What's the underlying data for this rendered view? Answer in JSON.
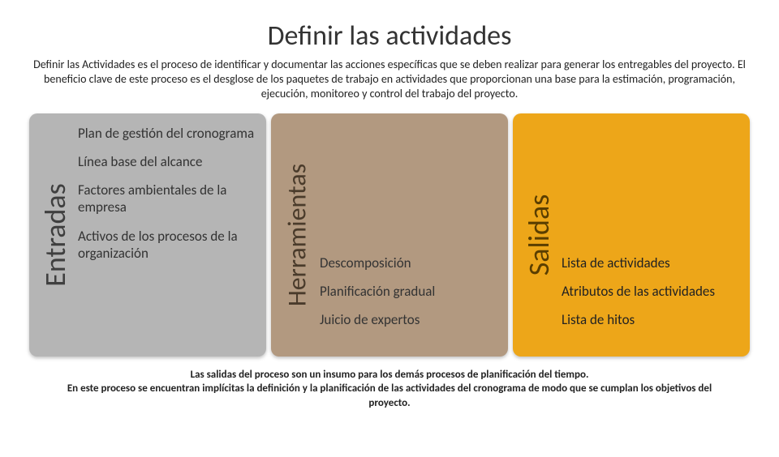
{
  "title": "Definir las actividades",
  "subtitle": "Definir las Actividades es el proceso de identificar y documentar las acciones específicas que se deben realizar para generar los entregables del proyecto. El beneficio clave de este proceso es el desglose de los paquetes de trabajo en actividades que proporcionan una base para la estimación, programación, ejecución, monitoreo y control del trabajo del proyecto.",
  "columns": {
    "entradas": {
      "label": "Entradas",
      "bg_color": "#b5b5b5",
      "label_color": "#3f3f3f",
      "items": [
        "Plan de gestión del cronograma",
        "Línea base del alcance",
        "Factores ambientales de la empresa",
        "Activos de los procesos de la organización"
      ]
    },
    "herramientas": {
      "label": "Herramientas",
      "bg_color": "#b29980",
      "label_color": "#4a3b2b",
      "items": [
        "Descomposición",
        "Planificación gradual",
        "Juicio de expertos"
      ]
    },
    "salidas": {
      "label": "Salidas",
      "bg_color": "#eda619",
      "label_color": "#5a3e00",
      "items": [
        "Lista de actividades",
        "Atributos de las actividades",
        "Lista de hitos"
      ]
    }
  },
  "footer_line1": "Las salidas del proceso son un insumo para los demás procesos de planificación del tiempo.",
  "footer_line2": "En este proceso se encuentran implícitas la definición y la planificación de las actividades del cronograma de modo que se cumplan los objetivos del proyecto."
}
